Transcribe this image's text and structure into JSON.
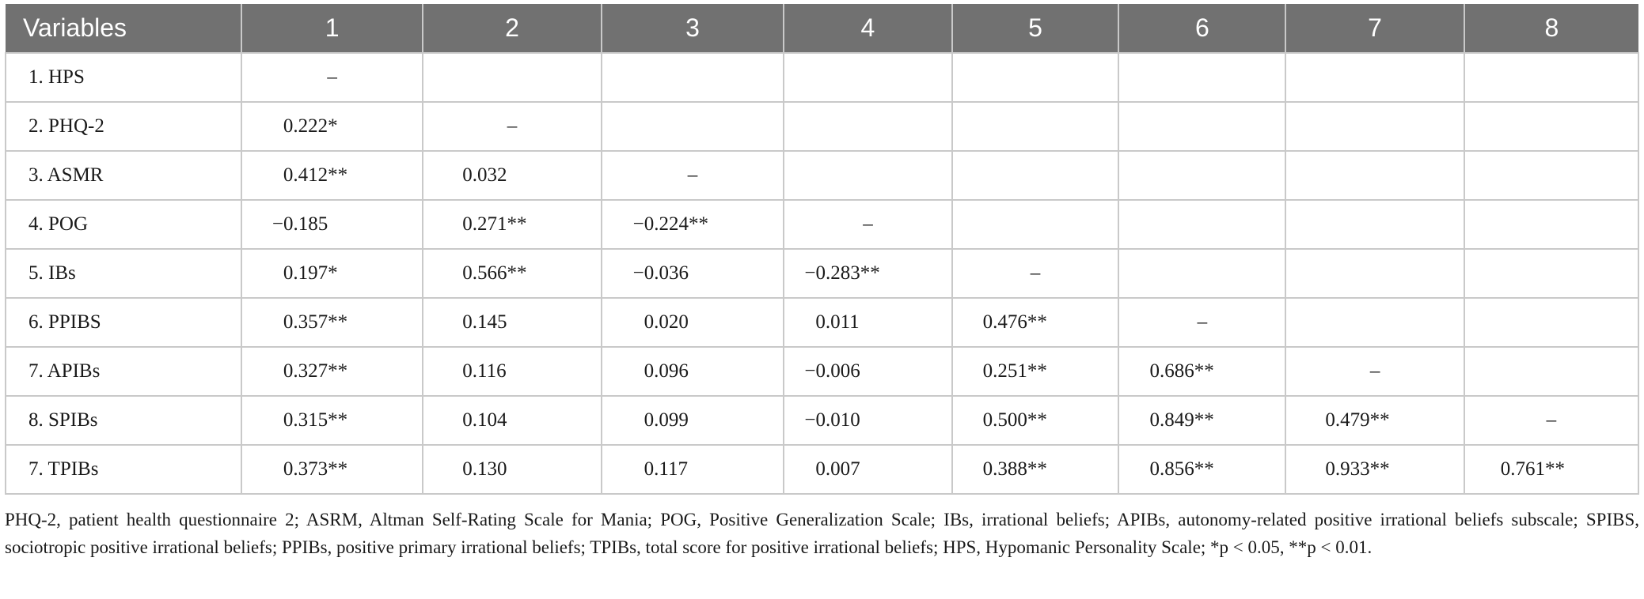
{
  "table": {
    "headers": [
      "Variables",
      "1",
      "2",
      "3",
      "4",
      "5",
      "6",
      "7",
      "8"
    ],
    "rows": [
      [
        "1. HPS",
        "–",
        "",
        "",
        "",
        "",
        "",
        "",
        ""
      ],
      [
        "2. PHQ-2",
        "0.222*",
        "–",
        "",
        "",
        "",
        "",
        "",
        ""
      ],
      [
        "3. ASMR",
        "0.412**",
        "0.032",
        "–",
        "",
        "",
        "",
        "",
        ""
      ],
      [
        "4. POG",
        "−0.185",
        "0.271**",
        "−0.224**",
        "–",
        "",
        "",
        "",
        ""
      ],
      [
        "5. IBs",
        "0.197*",
        "0.566**",
        "−0.036",
        "−0.283**",
        "–",
        "",
        "",
        ""
      ],
      [
        "6. PPIBS",
        "0.357**",
        "0.145",
        "0.020",
        "0.011",
        "0.476**",
        "–",
        "",
        ""
      ],
      [
        "7. APIBs",
        "0.327**",
        "0.116",
        "0.096",
        "−0.006",
        "0.251**",
        "0.686**",
        "–",
        ""
      ],
      [
        "8. SPIBs",
        "0.315**",
        "0.104",
        "0.099",
        "−0.010",
        "0.500**",
        "0.849**",
        "0.479**",
        "–"
      ],
      [
        "7. TPIBs",
        "0.373**",
        "0.130",
        "0.117",
        "0.007",
        "0.388**",
        "0.856**",
        "0.933**",
        "0.761**"
      ]
    ]
  },
  "footnote": "PHQ-2, patient health questionnaire 2; ASRM, Altman Self-Rating Scale for Mania; POG, Positive Generalization Scale; IBs, irrational beliefs; APIBs, autonomy-related positive irrational beliefs subscale; SPIBS, sociotropic positive irrational beliefs; PPIBs, positive primary irrational beliefs; TPIBs, total score for positive irrational beliefs; HPS, Hypomanic Personality Scale; *p < 0.05, **p < 0.01."
}
